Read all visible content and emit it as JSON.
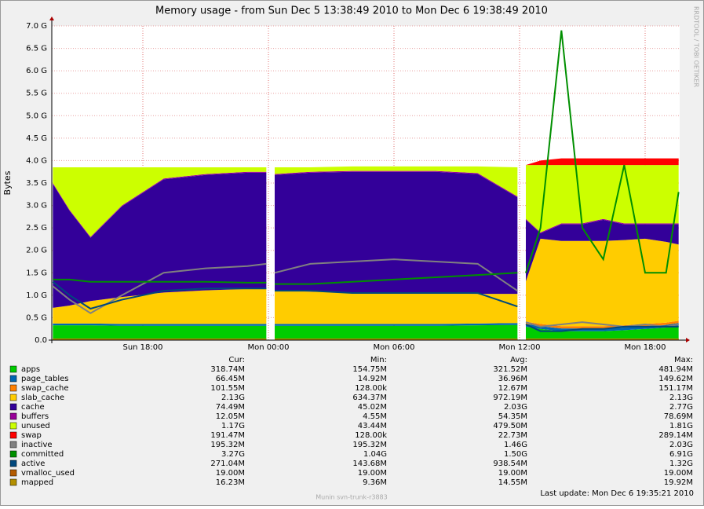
{
  "chart_data": {
    "type": "area",
    "title": "Memory usage - from Sun Dec  5 13:38:49 2010 to Mon Dec  6 19:38:49 2010",
    "y_label": "Bytes",
    "side_text": "RRDTOOL / TOBI OETIKER",
    "footer": "Munin svn-trunk-r3883",
    "last_update": "Last update:  Mon Dec  6 19:35:21 2010",
    "legend_columns": [
      "Cur:",
      "Min:",
      "Avg:",
      "Max:"
    ],
    "grid": true,
    "xlim": [
      13.65,
      43.65
    ],
    "xticks": [
      {
        "value": 18,
        "label": "Sun 18:00"
      },
      {
        "value": 24,
        "label": "Mon 00:00"
      },
      {
        "value": 30,
        "label": "Mon 06:00"
      },
      {
        "value": 36,
        "label": "Mon 12:00"
      },
      {
        "value": 42,
        "label": "Mon 18:00"
      }
    ],
    "ylim": [
      0,
      7
    ],
    "yticks": [
      {
        "value": 0,
        "label": "0.0"
      },
      {
        "value": 0.5,
        "label": "0.5 G"
      },
      {
        "value": 1,
        "label": "1.0 G"
      },
      {
        "value": 1.5,
        "label": "1.5 G"
      },
      {
        "value": 2,
        "label": "2.0 G"
      },
      {
        "value": 2.5,
        "label": "2.5 G"
      },
      {
        "value": 3,
        "label": "3.0 G"
      },
      {
        "value": 3.5,
        "label": "3.5 G"
      },
      {
        "value": 4,
        "label": "4.0 G"
      },
      {
        "value": 4.5,
        "label": "4.5 G"
      },
      {
        "value": 5,
        "label": "5.0 G"
      },
      {
        "value": 5.5,
        "label": "5.5 G"
      },
      {
        "value": 6,
        "label": "6.0 G"
      },
      {
        "value": 6.5,
        "label": "6.5 G"
      },
      {
        "value": 7,
        "label": "7.0 G"
      }
    ],
    "x": [
      13.7,
      14.5,
      15.5,
      17,
      19,
      21,
      23,
      23.9,
      24.1,
      24.3,
      26,
      28,
      30,
      32,
      34,
      35.9,
      36.1,
      36.3,
      37,
      38,
      39,
      40,
      41,
      42,
      43,
      43.6
    ],
    "series": [
      {
        "name": "apps",
        "color": "#00cc00",
        "stack": true,
        "cur": "318.74M",
        "min": "154.75M",
        "avg": "321.52M",
        "max": "481.94M",
        "values": [
          0.33,
          0.33,
          0.33,
          0.32,
          0.32,
          0.32,
          0.32,
          0.32,
          null,
          0.32,
          0.32,
          0.32,
          0.32,
          0.32,
          0.33,
          0.34,
          null,
          0.3,
          0.25,
          0.2,
          0.2,
          0.2,
          0.22,
          0.25,
          0.28,
          0.32
        ]
      },
      {
        "name": "page_tables",
        "color": "#0066b3",
        "stack": true,
        "cur": "66.45M",
        "min": "14.92M",
        "avg": "36.96M",
        "max": "149.62M",
        "values": [
          0.04,
          0.04,
          0.04,
          0.04,
          0.04,
          0.04,
          0.04,
          0.04,
          null,
          0.04,
          0.04,
          0.04,
          0.04,
          0.04,
          0.04,
          0.04,
          null,
          0.06,
          0.06,
          0.06,
          0.06,
          0.06,
          0.06,
          0.06,
          0.06,
          0.06
        ]
      },
      {
        "name": "swap_cache",
        "color": "#ff8000",
        "stack": true,
        "cur": "101.55M",
        "min": "128.00k",
        "avg": "12.67M",
        "max": "151.17M",
        "values": [
          0,
          0,
          0,
          0,
          0,
          0,
          0,
          0,
          null,
          0,
          0,
          0,
          0,
          0,
          0,
          0,
          null,
          0.05,
          0.05,
          0.05,
          0.05,
          0.05,
          0.05,
          0.05,
          0.05,
          0.05
        ]
      },
      {
        "name": "slab_cache",
        "color": "#ffcc00",
        "stack": true,
        "cur": "2.13G",
        "min": "634.37M",
        "avg": "972.19M",
        "max": "2.13G",
        "values": [
          0.35,
          0.4,
          0.5,
          0.6,
          0.7,
          0.75,
          0.78,
          0.78,
          null,
          0.75,
          0.72,
          0.7,
          0.7,
          0.68,
          0.66,
          0.65,
          null,
          0.9,
          1.9,
          1.9,
          1.9,
          1.9,
          1.9,
          1.9,
          1.8,
          1.7
        ]
      },
      {
        "name": "cache",
        "color": "#330099",
        "stack": true,
        "cur": "74.49M",
        "min": "45.02M",
        "avg": "2.03G",
        "max": "2.77G",
        "values": [
          2.76,
          2.11,
          1.41,
          2.02,
          2.52,
          2.57,
          2.59,
          2.59,
          null,
          2.57,
          2.65,
          2.69,
          2.69,
          2.71,
          2.67,
          2.15,
          null,
          1.37,
          0.12,
          0.37,
          0.37,
          0.47,
          0.35,
          0.32,
          0.39,
          0.45
        ]
      },
      {
        "name": "buffers",
        "color": "#990099",
        "stack": true,
        "cur": "12.05M",
        "min": "4.55M",
        "avg": "54.35M",
        "max": "78.69M",
        "values": [
          0.02,
          0.02,
          0.02,
          0.02,
          0.02,
          0.02,
          0.02,
          0.02,
          null,
          0.02,
          0.02,
          0.02,
          0.02,
          0.02,
          0.02,
          0.02,
          null,
          0.02,
          0.02,
          0.02,
          0.02,
          0.02,
          0.02,
          0.02,
          0.02,
          0.02
        ]
      },
      {
        "name": "unused",
        "color": "#ccff00",
        "stack": true,
        "cur": "1.17G",
        "min": "43.44M",
        "avg": "479.50M",
        "max": "1.81G",
        "values": [
          0.35,
          0.95,
          1.55,
          0.85,
          0.25,
          0.15,
          0.1,
          0.1,
          null,
          0.15,
          0.1,
          0.1,
          0.1,
          0.1,
          0.15,
          0.65,
          null,
          1.2,
          1.5,
          1.3,
          1.3,
          1.2,
          1.3,
          1.3,
          1.3,
          1.3
        ]
      },
      {
        "name": "swap",
        "color": "#ff0000",
        "stack": true,
        "cur": "191.47M",
        "min": "128.00k",
        "avg": "22.73M",
        "max": "289.14M",
        "values": [
          0,
          0,
          0,
          0,
          0,
          0,
          0,
          0,
          null,
          0,
          0,
          0,
          0,
          0,
          0,
          0,
          null,
          0,
          0.1,
          0.15,
          0.15,
          0.15,
          0.15,
          0.15,
          0.15,
          0.15
        ]
      },
      {
        "name": "inactive",
        "color": "#808080",
        "stack": false,
        "cur": "195.32M",
        "min": "195.32M",
        "avg": "1.46G",
        "max": "2.03G",
        "values": [
          1.2,
          0.9,
          0.6,
          1.0,
          1.5,
          1.6,
          1.65,
          1.7,
          null,
          1.5,
          1.7,
          1.75,
          1.8,
          1.75,
          1.7,
          1.1,
          null,
          0.4,
          0.3,
          0.35,
          0.4,
          0.35,
          0.3,
          0.35,
          0.3,
          0.35
        ]
      },
      {
        "name": "committed",
        "color": "#008f00",
        "stack": false,
        "cur": "3.27G",
        "min": "1.04G",
        "avg": "1.50G",
        "max": "6.91G",
        "values": [
          1.35,
          1.35,
          1.3,
          1.3,
          1.3,
          1.3,
          1.28,
          1.28,
          null,
          1.25,
          1.25,
          1.3,
          1.35,
          1.4,
          1.45,
          1.5,
          null,
          1.5,
          2.5,
          6.9,
          2.5,
          1.8,
          3.9,
          1.5,
          1.5,
          3.3
        ]
      },
      {
        "name": "active",
        "color": "#00487d",
        "stack": false,
        "cur": "271.04M",
        "min": "143.68M",
        "avg": "938.54M",
        "max": "1.32G",
        "values": [
          1.3,
          1.0,
          0.7,
          0.9,
          1.1,
          1.15,
          1.15,
          1.15,
          null,
          1.1,
          1.1,
          1.05,
          1.05,
          1.05,
          1.05,
          0.75,
          null,
          0.35,
          0.2,
          0.2,
          0.25,
          0.25,
          0.3,
          0.3,
          0.3,
          0.3
        ]
      },
      {
        "name": "vmalloc_used",
        "color": "#b35a00",
        "stack": false,
        "cur": "19.00M",
        "min": "19.00M",
        "avg": "19.00M",
        "max": "19.00M",
        "values": [
          0.02,
          0.02,
          0.02,
          0.02,
          0.02,
          0.02,
          0.02,
          0.02,
          null,
          0.02,
          0.02,
          0.02,
          0.02,
          0.02,
          0.02,
          0.02,
          null,
          0.02,
          0.02,
          0.02,
          0.02,
          0.02,
          0.02,
          0.02,
          0.02,
          0.02
        ]
      },
      {
        "name": "mapped",
        "color": "#b38f00",
        "stack": false,
        "cur": "16.23M",
        "min": "9.36M",
        "avg": "14.55M",
        "max": "19.92M",
        "values": [
          0.015,
          0.015,
          0.015,
          0.015,
          0.015,
          0.015,
          0.015,
          0.015,
          null,
          0.015,
          0.015,
          0.015,
          0.015,
          0.015,
          0.015,
          0.015,
          null,
          0.018,
          0.018,
          0.018,
          0.018,
          0.018,
          0.018,
          0.018,
          0.018,
          0.018
        ]
      }
    ]
  }
}
